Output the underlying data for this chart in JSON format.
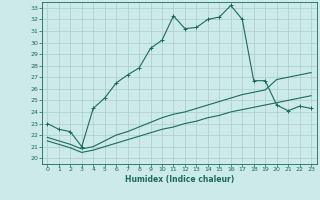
{
  "xlabel": "Humidex (Indice chaleur)",
  "background_color": "#cceaea",
  "grid_color": "#aacccc",
  "line_color": "#1a6b5a",
  "xlim": [
    -0.5,
    23.5
  ],
  "ylim": [
    19.5,
    33.5
  ],
  "xticks": [
    0,
    1,
    2,
    3,
    4,
    5,
    6,
    7,
    8,
    9,
    10,
    11,
    12,
    13,
    14,
    15,
    16,
    17,
    18,
    19,
    20,
    21,
    22,
    23
  ],
  "yticks": [
    20,
    21,
    22,
    23,
    24,
    25,
    26,
    27,
    28,
    29,
    30,
    31,
    32,
    33
  ],
  "main_x": [
    0,
    1,
    2,
    3,
    4,
    5,
    6,
    7,
    8,
    9,
    10,
    11,
    12,
    13,
    14,
    15,
    16,
    17,
    18,
    19,
    20,
    21,
    22,
    23
  ],
  "main_y": [
    23.0,
    22.5,
    22.3,
    21.0,
    24.3,
    25.2,
    26.5,
    27.2,
    27.8,
    29.5,
    30.2,
    32.3,
    31.2,
    31.3,
    32.0,
    32.2,
    33.2,
    32.0,
    26.7,
    26.7,
    24.6,
    24.1,
    24.5,
    24.3
  ],
  "line2_x": [
    0,
    1,
    2,
    3,
    4,
    5,
    6,
    7,
    8,
    9,
    10,
    11,
    12,
    13,
    14,
    15,
    16,
    17,
    18,
    19,
    20,
    21,
    22,
    23
  ],
  "line2_y": [
    21.8,
    21.5,
    21.2,
    20.8,
    21.0,
    21.5,
    22.0,
    22.3,
    22.7,
    23.1,
    23.5,
    23.8,
    24.0,
    24.3,
    24.6,
    24.9,
    25.2,
    25.5,
    25.7,
    25.9,
    26.8,
    27.0,
    27.2,
    27.4
  ],
  "line3_x": [
    0,
    1,
    2,
    3,
    4,
    5,
    6,
    7,
    8,
    9,
    10,
    11,
    12,
    13,
    14,
    15,
    16,
    17,
    18,
    19,
    20,
    21,
    22,
    23
  ],
  "line3_y": [
    21.5,
    21.2,
    20.9,
    20.5,
    20.7,
    21.0,
    21.3,
    21.6,
    21.9,
    22.2,
    22.5,
    22.7,
    23.0,
    23.2,
    23.5,
    23.7,
    24.0,
    24.2,
    24.4,
    24.6,
    24.8,
    25.0,
    25.2,
    25.4
  ]
}
